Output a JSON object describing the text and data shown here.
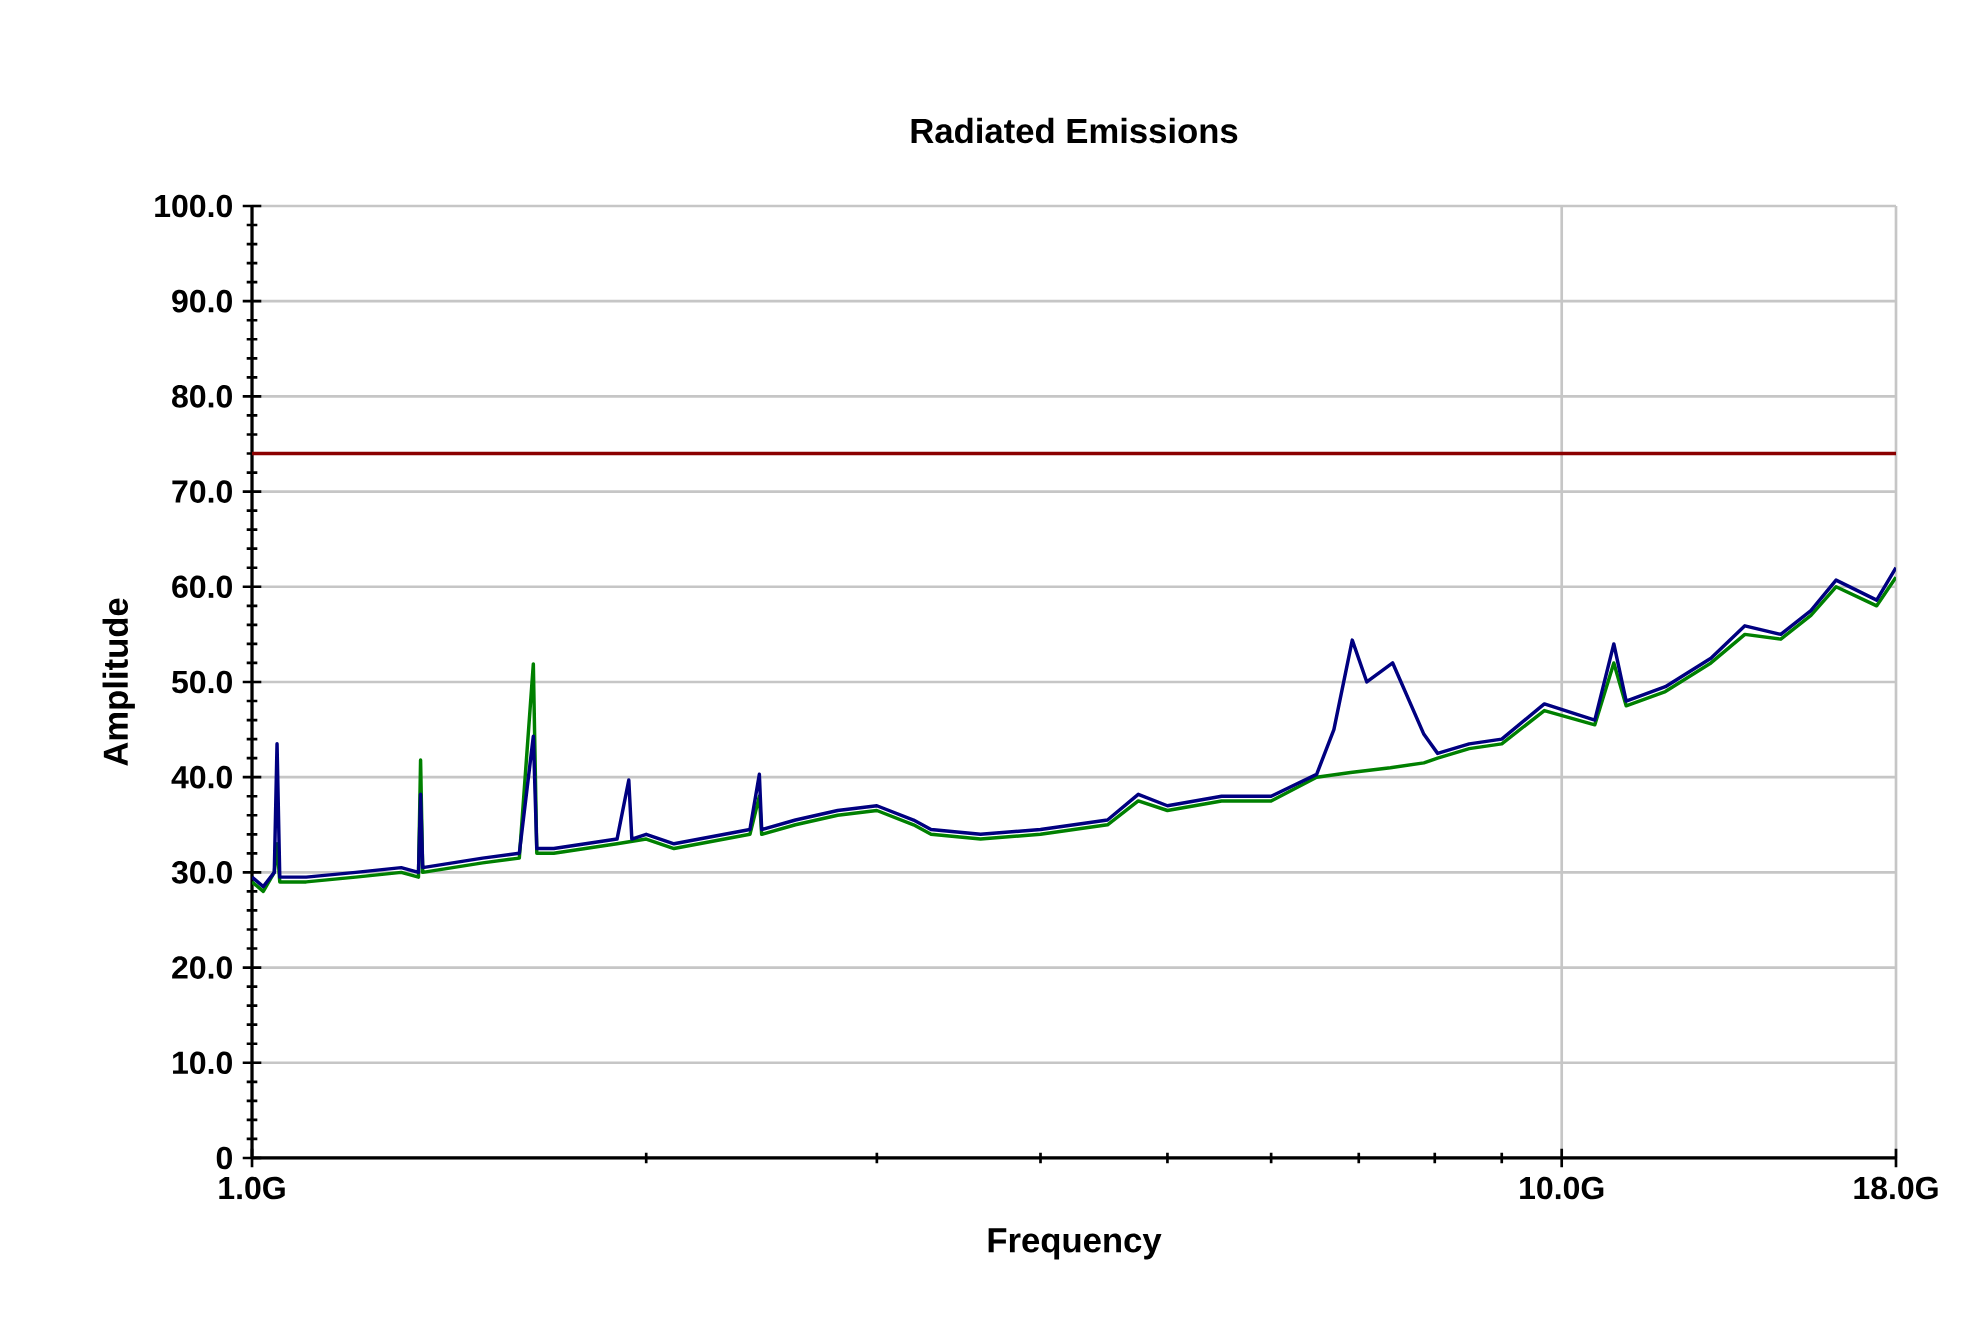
{
  "chart_data": {
    "type": "line",
    "title": "Radiated Emissions",
    "xlabel": "Frequency",
    "ylabel": "Amplitude",
    "log": "x",
    "grid": true,
    "marker": "none",
    "line_style": "solid",
    "xlim": [
      1,
      18
    ],
    "ylim": [
      0,
      100
    ],
    "xticks": [
      {
        "value": 1,
        "label": "1.0G"
      },
      {
        "value": 2,
        "label": null
      },
      {
        "value": 3,
        "label": null
      },
      {
        "value": 4,
        "label": null
      },
      {
        "value": 5,
        "label": null
      },
      {
        "value": 6,
        "label": null
      },
      {
        "value": 7,
        "label": null
      },
      {
        "value": 8,
        "label": null
      },
      {
        "value": 9,
        "label": null
      },
      {
        "value": 10,
        "label": "10.0G"
      },
      {
        "value": 18,
        "label": "18.0G"
      }
    ],
    "yticks": [
      0,
      {
        "value": 10,
        "label": "10.0"
      },
      {
        "value": 20,
        "label": "20.0"
      },
      {
        "value": 30,
        "label": "30.0"
      },
      {
        "value": 40,
        "label": "40.0"
      },
      {
        "value": 50,
        "label": "50.0"
      },
      {
        "value": 60,
        "label": "60.0"
      },
      {
        "value": 70,
        "label": "70.0"
      },
      {
        "value": 80,
        "label": "80.0"
      },
      {
        "value": 90,
        "label": "90.0"
      },
      {
        "value": 100,
        "label": "100.0"
      }
    ],
    "ref_lines": [
      {
        "axis": "y",
        "value": 74,
        "color": "#8b0000"
      }
    ],
    "series": [
      {
        "color": "#008000",
        "x": [
          1.0,
          1.02,
          1.04,
          1.045,
          1.05,
          1.1,
          1.2,
          1.3,
          1.34,
          1.345,
          1.35,
          1.5,
          1.6,
          1.64,
          1.65,
          1.7,
          1.9,
          2.0,
          2.1,
          2.4,
          2.44,
          2.45,
          2.6,
          2.8,
          3.0,
          3.2,
          3.3,
          3.6,
          4.0,
          4.5,
          4.75,
          5.0,
          5.5,
          6.0,
          6.5,
          6.9,
          7.4,
          7.85,
          8.04,
          8.5,
          9.0,
          9.7,
          10.6,
          10.96,
          11.2,
          12.0,
          13.0,
          13.8,
          14.7,
          15.5,
          16.2,
          17.4,
          18.0
        ],
        "values": [
          29,
          28,
          30,
          33,
          29,
          29,
          29.5,
          30,
          29.5,
          41.8,
          30,
          31,
          31.5,
          51.9,
          32,
          32,
          33,
          33.5,
          32.5,
          34,
          38,
          34,
          35,
          36,
          36.5,
          35,
          34,
          33.5,
          34,
          35,
          37.5,
          36.5,
          37.5,
          37.5,
          40,
          40.5,
          41,
          41.5,
          42,
          43,
          43.5,
          47,
          45.5,
          52,
          47.5,
          49,
          52,
          55,
          54.5,
          57,
          60,
          58,
          61
        ]
      },
      {
        "color": "#000080",
        "x": [
          1.0,
          1.02,
          1.04,
          1.045,
          1.05,
          1.1,
          1.2,
          1.3,
          1.34,
          1.345,
          1.35,
          1.5,
          1.6,
          1.64,
          1.65,
          1.7,
          1.9,
          1.94,
          1.95,
          2.0,
          2.1,
          2.4,
          2.44,
          2.45,
          2.6,
          2.8,
          3.0,
          3.2,
          3.3,
          3.6,
          4.0,
          4.5,
          4.75,
          5.0,
          5.5,
          6.0,
          6.5,
          6.7,
          6.92,
          7.1,
          7.43,
          7.85,
          8.04,
          8.5,
          9.0,
          9.7,
          10.6,
          10.96,
          11.2,
          12.0,
          13.0,
          13.8,
          14.7,
          15.5,
          16.2,
          17.4,
          18.0
        ],
        "values": [
          29.5,
          28.5,
          30,
          43.5,
          29.5,
          29.5,
          30,
          30.5,
          30,
          38.2,
          30.5,
          31.5,
          32,
          44.3,
          32.5,
          32.5,
          33.5,
          39.7,
          33.5,
          34,
          33,
          34.5,
          40.3,
          34.5,
          35.5,
          36.5,
          37,
          35.5,
          34.5,
          34,
          34.5,
          35.5,
          38.2,
          37,
          38,
          38,
          40.3,
          45,
          54.4,
          50,
          52,
          44.5,
          42.5,
          43.5,
          44,
          47.7,
          46,
          54,
          48,
          49.5,
          52.5,
          55.9,
          55,
          57.5,
          60.7,
          58.6,
          62
        ]
      }
    ]
  }
}
